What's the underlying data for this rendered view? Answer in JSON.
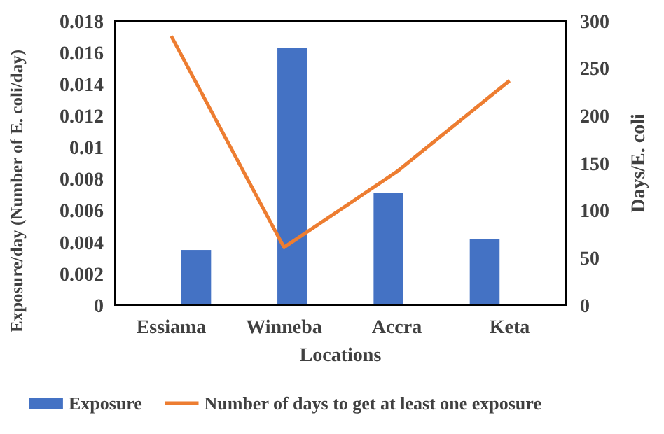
{
  "chart_data": {
    "type": "bar",
    "xlabel": "Locations",
    "ylabel": "Exposure/day (Number of E. coli/day)",
    "y2label": "Days/E. coli",
    "categories": [
      "Essiama",
      "Winneba",
      "Accra",
      "Keta"
    ],
    "series": [
      {
        "name": "Exposure",
        "color": "#4472c4",
        "values": [
          0.0035,
          0.0163,
          0.0071,
          0.0042
        ]
      },
      {
        "name": "Number of days to get at least one exposure",
        "type": "line",
        "axis": "y2",
        "color": "#ed7d31",
        "values": [
          284,
          61,
          141,
          237
        ]
      }
    ],
    "ylim": [
      0,
      0.018
    ],
    "yticks": [
      0,
      0.002,
      0.004,
      0.006,
      0.008,
      0.01,
      0.012,
      0.014,
      0.016,
      0.018
    ],
    "y2lim": [
      0,
      300
    ],
    "y2ticks": [
      0,
      50,
      100,
      150,
      200,
      250,
      300
    ],
    "legend": "bottom",
    "marker": "none"
  }
}
